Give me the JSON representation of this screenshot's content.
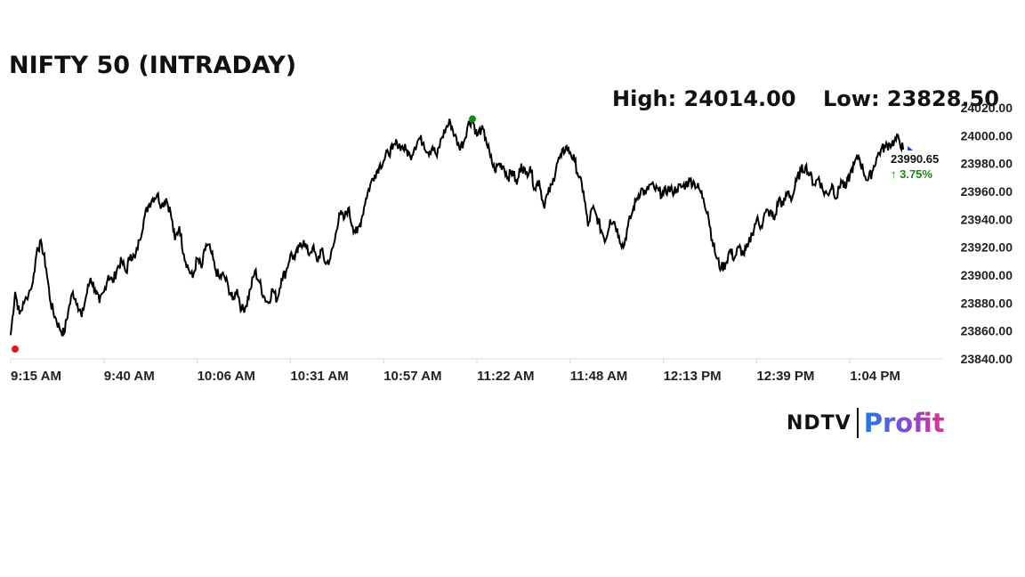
{
  "title": "NIFTY 50 (INTRADAY)",
  "high_label": "High: 24014.00",
  "low_label": "Low: 23828.50",
  "last_price": "23990.65",
  "change": "↑ 3.75%",
  "logo": {
    "left": "NDTV",
    "right": "Profit"
  },
  "colors": {
    "line": "#000000",
    "low_marker": "#e01818",
    "high_marker": "#128a12",
    "last_marker": "#2233cc",
    "change": "#1a8a1a",
    "grid": "#d8d8d8"
  },
  "chart_data": {
    "type": "line",
    "title": "NIFTY 50 (INTRADAY)",
    "xlabel": "",
    "ylabel": "",
    "ylim": [
      23840,
      24020
    ],
    "y_ticks": [
      "23840.00",
      "23860.00",
      "23880.00",
      "23900.00",
      "23920.00",
      "23940.00",
      "23960.00",
      "23980.00",
      "24000.00",
      "24020.00"
    ],
    "x_ticks": [
      "9:15 AM",
      "9:40 AM",
      "10:06 AM",
      "10:31 AM",
      "10:57 AM",
      "11:22 AM",
      "11:48 AM",
      "12:13 PM",
      "12:39 PM",
      "1:04 PM"
    ],
    "series": [
      {
        "values": [
          [
            0,
            23857
          ],
          [
            1,
            23888
          ],
          [
            2,
            23872
          ],
          [
            3,
            23880
          ],
          [
            5,
            23895
          ],
          [
            6,
            23920
          ],
          [
            7,
            23922
          ],
          [
            8,
            23905
          ],
          [
            9,
            23880
          ],
          [
            10,
            23870
          ],
          [
            11,
            23862
          ],
          [
            12,
            23858
          ],
          [
            13,
            23875
          ],
          [
            14,
            23888
          ],
          [
            15,
            23880
          ],
          [
            16,
            23870
          ],
          [
            17,
            23885
          ],
          [
            18,
            23898
          ],
          [
            19,
            23890
          ],
          [
            20,
            23880
          ],
          [
            21,
            23888
          ],
          [
            22,
            23900
          ],
          [
            23,
            23895
          ],
          [
            24,
            23905
          ],
          [
            25,
            23910
          ],
          [
            26,
            23902
          ],
          [
            27,
            23915
          ],
          [
            28,
            23912
          ],
          [
            29,
            23925
          ],
          [
            30,
            23940
          ],
          [
            31,
            23950
          ],
          [
            32,
            23955
          ],
          [
            33,
            23958
          ],
          [
            34,
            23950
          ],
          [
            35,
            23955
          ],
          [
            36,
            23945
          ],
          [
            37,
            23925
          ],
          [
            38,
            23935
          ],
          [
            39,
            23915
          ],
          [
            40,
            23905
          ],
          [
            41,
            23898
          ],
          [
            42,
            23912
          ],
          [
            43,
            23905
          ],
          [
            44,
            23922
          ],
          [
            45,
            23918
          ],
          [
            46,
            23905
          ],
          [
            47,
            23898
          ],
          [
            48,
            23900
          ],
          [
            49,
            23892
          ],
          [
            50,
            23882
          ],
          [
            51,
            23890
          ],
          [
            52,
            23875
          ],
          [
            53,
            23878
          ],
          [
            54,
            23890
          ],
          [
            55,
            23903
          ],
          [
            56,
            23895
          ],
          [
            57,
            23885
          ],
          [
            58,
            23880
          ],
          [
            59,
            23890
          ],
          [
            60,
            23882
          ],
          [
            61,
            23898
          ],
          [
            62,
            23902
          ],
          [
            63,
            23915
          ],
          [
            64,
            23912
          ],
          [
            65,
            23920
          ],
          [
            66,
            23925
          ],
          [
            67,
            23915
          ],
          [
            68,
            23920
          ],
          [
            69,
            23910
          ],
          [
            70,
            23918
          ],
          [
            71,
            23908
          ],
          [
            72,
            23912
          ],
          [
            73,
            23925
          ],
          [
            74,
            23945
          ],
          [
            75,
            23940
          ],
          [
            76,
            23948
          ],
          [
            77,
            23935
          ],
          [
            78,
            23930
          ],
          [
            79,
            23940
          ],
          [
            80,
            23955
          ],
          [
            81,
            23965
          ],
          [
            82,
            23972
          ],
          [
            83,
            23978
          ],
          [
            84,
            23982
          ],
          [
            85,
            23988
          ],
          [
            86,
            23990
          ],
          [
            87,
            23995
          ],
          [
            88,
            23992
          ],
          [
            89,
            23990
          ],
          [
            90,
            23985
          ],
          [
            91,
            23992
          ],
          [
            92,
            23998
          ],
          [
            93,
            23995
          ],
          [
            94,
            23988
          ],
          [
            95,
            23992
          ],
          [
            96,
            23985
          ],
          [
            97,
            23998
          ],
          [
            98,
            24005
          ],
          [
            99,
            24010
          ],
          [
            100,
            24000
          ],
          [
            101,
            23992
          ],
          [
            102,
            23995
          ],
          [
            103,
            24008
          ],
          [
            104,
            24012
          ],
          [
            105,
            24000
          ],
          [
            106,
            24005
          ],
          [
            107,
            23998
          ],
          [
            108,
            23985
          ],
          [
            109,
            23975
          ],
          [
            110,
            23980
          ],
          [
            111,
            23978
          ],
          [
            112,
            23970
          ],
          [
            113,
            23975
          ],
          [
            114,
            23965
          ],
          [
            115,
            23980
          ],
          [
            116,
            23972
          ],
          [
            117,
            23978
          ],
          [
            118,
            23962
          ],
          [
            119,
            23968
          ],
          [
            120,
            23950
          ],
          [
            121,
            23958
          ],
          [
            122,
            23965
          ],
          [
            123,
            23980
          ],
          [
            124,
            23985
          ],
          [
            125,
            23992
          ],
          [
            126,
            23988
          ],
          [
            127,
            23982
          ],
          [
            128,
            23970
          ],
          [
            129,
            23960
          ],
          [
            130,
            23935
          ],
          [
            131,
            23948
          ],
          [
            132,
            23942
          ],
          [
            133,
            23932
          ],
          [
            134,
            23925
          ],
          [
            135,
            23940
          ],
          [
            136,
            23938
          ],
          [
            137,
            23928
          ],
          [
            138,
            23920
          ],
          [
            139,
            23935
          ],
          [
            140,
            23945
          ],
          [
            141,
            23955
          ],
          [
            142,
            23962
          ],
          [
            143,
            23958
          ],
          [
            144,
            23965
          ],
          [
            145,
            23962
          ],
          [
            146,
            23960
          ],
          [
            147,
            23958
          ],
          [
            148,
            23962
          ],
          [
            149,
            23960
          ],
          [
            150,
            23962
          ],
          [
            151,
            23963
          ],
          [
            152,
            23965
          ],
          [
            153,
            23968
          ],
          [
            154,
            23966
          ],
          [
            155,
            23962
          ],
          [
            156,
            23955
          ],
          [
            157,
            23945
          ],
          [
            158,
            23925
          ],
          [
            159,
            23912
          ],
          [
            160,
            23905
          ],
          [
            161,
            23908
          ],
          [
            162,
            23918
          ],
          [
            163,
            23912
          ],
          [
            164,
            23920
          ],
          [
            165,
            23915
          ],
          [
            166,
            23920
          ],
          [
            167,
            23930
          ],
          [
            168,
            23940
          ],
          [
            169,
            23935
          ],
          [
            170,
            23945
          ],
          [
            171,
            23945
          ],
          [
            172,
            23940
          ],
          [
            173,
            23955
          ],
          [
            174,
            23950
          ],
          [
            175,
            23960
          ],
          [
            176,
            23955
          ],
          [
            177,
            23968
          ],
          [
            178,
            23975
          ],
          [
            179,
            23978
          ],
          [
            180,
            23972
          ],
          [
            181,
            23965
          ],
          [
            182,
            23970
          ],
          [
            183,
            23960
          ],
          [
            184,
            23958
          ],
          [
            185,
            23965
          ],
          [
            186,
            23955
          ],
          [
            187,
            23968
          ],
          [
            188,
            23962
          ],
          [
            189,
            23972
          ],
          [
            190,
            23980
          ],
          [
            191,
            23985
          ],
          [
            192,
            23975
          ],
          [
            193,
            23968
          ],
          [
            194,
            23974
          ],
          [
            195,
            23984
          ],
          [
            196,
            23990
          ],
          [
            197,
            23992
          ],
          [
            198,
            23994
          ],
          [
            199,
            23996
          ],
          [
            200,
            23998
          ],
          [
            201,
            23990
          ]
        ]
      }
    ]
  }
}
